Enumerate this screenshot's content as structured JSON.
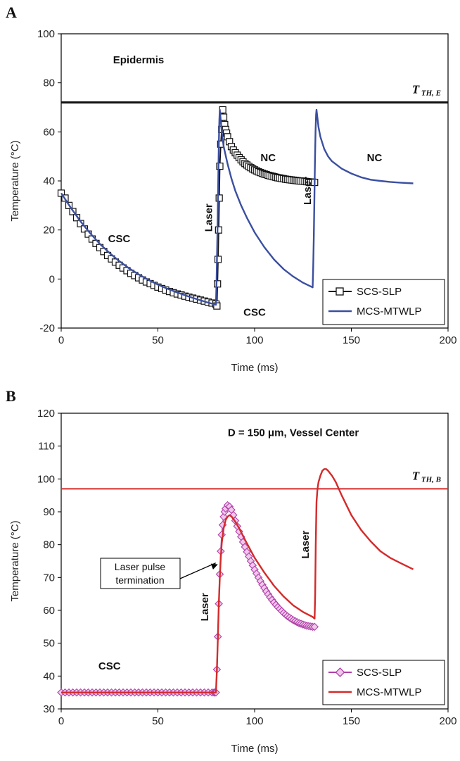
{
  "chart_data": [
    {
      "panel": "A",
      "type": "line",
      "xlabel": "Time (ms)",
      "ylabel": "Temperature (°C)",
      "xlim": [
        0,
        200
      ],
      "ylim": [
        -20,
        100
      ],
      "xticks": [
        0,
        50,
        100,
        150,
        200
      ],
      "yticks": [
        -20,
        0,
        20,
        40,
        60,
        80,
        100
      ],
      "grid": false,
      "legend_position": "bottom-right",
      "threshold": {
        "label": "T",
        "subscript": "TH, E",
        "y": 72
      },
      "annotations": [
        {
          "text": "Epidermis",
          "x": 40,
          "y": 88
        },
        {
          "text": "CSC",
          "x": 30,
          "y": 15
        },
        {
          "text": "CSC",
          "x": 100,
          "y": -15
        },
        {
          "text": "NC",
          "x": 107,
          "y": 48
        },
        {
          "text": "NC",
          "x": 162,
          "y": 48
        },
        {
          "text": "Laser",
          "x": 78,
          "y": 25,
          "rotate": true
        },
        {
          "text": "Laser",
          "x": 129,
          "y": 36,
          "rotate": true
        }
      ],
      "series": [
        {
          "name": "SCS-SLP",
          "color": "#111111",
          "marker": "square",
          "x": [
            0,
            2,
            4,
            6,
            8,
            10,
            12,
            14,
            16,
            18,
            20,
            22,
            24,
            26,
            28,
            30,
            32,
            34,
            36,
            38,
            40,
            42,
            44,
            46,
            48,
            50,
            52,
            54,
            56,
            58,
            60,
            62,
            64,
            66,
            68,
            70,
            72,
            74,
            76,
            78,
            80,
            80.5,
            80.8,
            81.1,
            81.4,
            81.7,
            82,
            82.5,
            83,
            83.5,
            84,
            84.5,
            85,
            85.5,
            86,
            87,
            88,
            89,
            90,
            91,
            92,
            93,
            94,
            95,
            96,
            97,
            98,
            99,
            100,
            101,
            102,
            103,
            104,
            105,
            106,
            107,
            108,
            109,
            110,
            111,
            112,
            113,
            114,
            115,
            116,
            117,
            118,
            119,
            120,
            121,
            122,
            123,
            124,
            125,
            126,
            127,
            128,
            129,
            130,
            131
          ],
          "y": [
            35,
            33,
            30,
            27.5,
            25,
            22.6,
            20.4,
            18.3,
            16.3,
            14.5,
            12.8,
            11.2,
            9.6,
            8.2,
            6.9,
            5.6,
            4.5,
            3.4,
            2.3,
            1.4,
            0.5,
            -0.4,
            -1.2,
            -1.9,
            -2.6,
            -3.3,
            -3.9,
            -4.5,
            -5.1,
            -5.6,
            -6.1,
            -6.5,
            -7,
            -7.4,
            -7.8,
            -8.2,
            -8.6,
            -9,
            -9.4,
            -9.8,
            -10.2,
            -11,
            -2,
            8,
            20,
            33,
            46,
            55,
            61,
            69,
            66,
            63,
            61,
            59.5,
            58,
            56,
            54,
            52.6,
            51.5,
            50.5,
            49.5,
            48.6,
            47.8,
            47.1,
            46.5,
            45.9,
            45.4,
            44.9,
            44.5,
            44.1,
            43.7,
            43.4,
            43.1,
            42.8,
            42.6,
            42.3,
            42.1,
            41.9,
            41.7,
            41.5,
            41.3,
            41.2,
            41,
            40.9,
            40.7,
            40.6,
            40.5,
            40.4,
            40.3,
            40.2,
            40.1,
            40,
            39.95,
            39.9,
            39.8,
            39.7,
            39.6,
            39.55,
            39.5,
            39.4
          ],
          "values": [
            35,
            33,
            30,
            27.5,
            25,
            22.6,
            20.4,
            18.3,
            16.3,
            14.5,
            12.8,
            11.2,
            9.6,
            8.2,
            6.9,
            5.6,
            4.5,
            3.4,
            2.3,
            1.4,
            0.5,
            -0.4,
            -1.2,
            -1.9,
            -2.6,
            -3.3,
            -3.9,
            -4.5,
            -5.1,
            -5.6,
            -6.1,
            -6.5,
            -7,
            -7.4,
            -7.8,
            -8.2,
            -8.6,
            -9,
            -9.4,
            -9.8,
            -10.2,
            -11,
            -2,
            8,
            20,
            33,
            46,
            55,
            61,
            69,
            66,
            63,
            61,
            59.5,
            58,
            56,
            54,
            52.6,
            51.5,
            50.5,
            49.5,
            48.6,
            47.8,
            47.1,
            46.5,
            45.9,
            45.4,
            44.9,
            44.5,
            44.1,
            43.7,
            43.4,
            43.1,
            42.8,
            42.6,
            42.3,
            42.1,
            41.9,
            41.7,
            41.5,
            41.3,
            41.2,
            41,
            40.9,
            40.7,
            40.6,
            40.5,
            40.4,
            40.3,
            40.2,
            40.1,
            40,
            39.95,
            39.9,
            39.8,
            39.7,
            39.6,
            39.55,
            39.5,
            39.4
          ]
        },
        {
          "name": "MCS-MTWLP",
          "color": "#3b4fa0",
          "marker": "none",
          "x": [
            0,
            5,
            10,
            15,
            20,
            25,
            30,
            35,
            40,
            45,
            50,
            55,
            60,
            65,
            70,
            75,
            80,
            80.3,
            80.6,
            80.9,
            81.2,
            81.5,
            81.8,
            82,
            83,
            84,
            86,
            88,
            90,
            93,
            96,
            100,
            105,
            110,
            115,
            120,
            125,
            130,
            130.3,
            130.6,
            130.9,
            131.2,
            131.5,
            131.8,
            132,
            133,
            134,
            136,
            138,
            140,
            145,
            150,
            155,
            160,
            165,
            170,
            175,
            182
          ],
          "y": [
            35,
            29,
            23.5,
            18.6,
            14.3,
            10.6,
            7.3,
            4.4,
            1.9,
            -0.3,
            -2.3,
            -4,
            -5.5,
            -6.9,
            -8.2,
            -9.4,
            -10.5,
            -2,
            10,
            25,
            40,
            55,
            65,
            69,
            60,
            54,
            47,
            41,
            36,
            30,
            25,
            19,
            13,
            8,
            4,
            1,
            -1.5,
            -3.4,
            5,
            18,
            33,
            48,
            60,
            67,
            69,
            62,
            58,
            53,
            50,
            48,
            45,
            43,
            41.5,
            40.5,
            40,
            39.6,
            39.3,
            39
          ],
          "values": [
            35,
            29,
            23.5,
            18.6,
            14.3,
            10.6,
            7.3,
            4.4,
            1.9,
            -0.3,
            -2.3,
            -4,
            -5.5,
            -6.9,
            -8.2,
            -9.4,
            -10.5,
            -2,
            10,
            25,
            40,
            55,
            65,
            69,
            60,
            54,
            47,
            41,
            36,
            30,
            25,
            19,
            13,
            8,
            4,
            1,
            -1.5,
            -3.4,
            5,
            18,
            33,
            48,
            60,
            67,
            69,
            62,
            58,
            53,
            50,
            48,
            45,
            43,
            41.5,
            40.5,
            40,
            39.6,
            39.3,
            39
          ]
        }
      ]
    },
    {
      "panel": "B",
      "type": "line",
      "xlabel": "Time (ms)",
      "ylabel": "Temperature (°C)",
      "xlim": [
        0,
        200
      ],
      "ylim": [
        30,
        120
      ],
      "xticks": [
        0,
        50,
        100,
        150,
        200
      ],
      "yticks": [
        30,
        40,
        50,
        60,
        70,
        80,
        90,
        100,
        110,
        120
      ],
      "grid": false,
      "legend_position": "bottom-right",
      "threshold": {
        "label": "T",
        "subscript": "TH, B",
        "y": 97
      },
      "annotations": [
        {
          "text": "D = 150 μm, Vessel Center",
          "x": 120,
          "y": 113
        },
        {
          "text": "CSC",
          "x": 25,
          "y": 42
        },
        {
          "text": "Laser",
          "x": 76,
          "y": 61,
          "rotate": true
        },
        {
          "text": "Laser",
          "x": 128,
          "y": 80,
          "rotate": true
        }
      ],
      "callout": {
        "text": [
          "Laser pulse",
          "termination"
        ],
        "arrow_to": [
          81,
          74
        ]
      },
      "series": [
        {
          "name": "SCS-SLP",
          "color": "#b040a8",
          "marker": "diamond",
          "x": [
            0,
            2,
            4,
            6,
            8,
            10,
            12,
            14,
            16,
            18,
            20,
            22,
            24,
            26,
            28,
            30,
            32,
            34,
            36,
            38,
            40,
            42,
            44,
            46,
            48,
            50,
            52,
            54,
            56,
            58,
            60,
            62,
            64,
            66,
            68,
            70,
            72,
            74,
            76,
            78,
            79,
            79.5,
            80,
            80.5,
            81,
            81.5,
            82,
            82.5,
            83,
            83.5,
            84,
            84.5,
            85,
            86,
            87,
            88,
            89,
            90,
            91,
            92,
            93,
            94,
            95,
            96,
            97,
            98,
            99,
            100,
            101,
            102,
            103,
            104,
            105,
            106,
            107,
            108,
            109,
            110,
            111,
            112,
            113,
            114,
            115,
            116,
            117,
            118,
            119,
            120,
            121,
            122,
            123,
            124,
            125,
            126,
            127,
            128,
            129,
            130,
            131
          ],
          "y": [
            35,
            35,
            35,
            35,
            35,
            35,
            35,
            35,
            35,
            35,
            35,
            35,
            35,
            35,
            35,
            35,
            35,
            35,
            35,
            35,
            35,
            35,
            35,
            35,
            35,
            35,
            35,
            35,
            35,
            35,
            35,
            35,
            35,
            35,
            35,
            35,
            35,
            35,
            35,
            35,
            35,
            35,
            35,
            42,
            52,
            62,
            71,
            78,
            83,
            86,
            88.5,
            90,
            91,
            92,
            91.6,
            90.6,
            89,
            87.3,
            85.6,
            84,
            82.4,
            80.8,
            79.3,
            77.8,
            76.4,
            75,
            73.7,
            72.4,
            71.2,
            70,
            68.9,
            67.8,
            66.8,
            65.8,
            64.9,
            64,
            63.2,
            62.4,
            61.7,
            61,
            60.4,
            59.8,
            59.2,
            58.7,
            58.2,
            57.8,
            57.4,
            57,
            56.7,
            56.4,
            56.1,
            55.9,
            55.7,
            55.5,
            55.3,
            55.2,
            55.1,
            55,
            55
          ],
          "values": [
            35,
            35,
            35,
            35,
            35,
            35,
            35,
            35,
            35,
            35,
            35,
            35,
            35,
            35,
            35,
            35,
            35,
            35,
            35,
            35,
            35,
            35,
            35,
            35,
            35,
            35,
            35,
            35,
            35,
            35,
            35,
            35,
            35,
            35,
            35,
            35,
            35,
            35,
            35,
            35,
            35,
            35,
            35,
            42,
            52,
            62,
            71,
            78,
            83,
            86,
            88.5,
            90,
            91,
            92,
            91.6,
            90.6,
            89,
            87.3,
            85.6,
            84,
            82.4,
            80.8,
            79.3,
            77.8,
            76.4,
            75,
            73.7,
            72.4,
            71.2,
            70,
            68.9,
            67.8,
            66.8,
            65.8,
            64.9,
            64,
            63.2,
            62.4,
            61.7,
            61,
            60.4,
            59.8,
            59.2,
            58.7,
            58.2,
            57.8,
            57.4,
            57,
            56.7,
            56.4,
            56.1,
            55.9,
            55.7,
            55.5,
            55.3,
            55.2,
            55.1,
            55,
            55
          ]
        },
        {
          "name": "MCS-MTWLP",
          "color": "#d42a2a",
          "marker": "none",
          "x": [
            0,
            20,
            40,
            60,
            79,
            80,
            80.5,
            81,
            81.5,
            82,
            82.5,
            83,
            84,
            85,
            86,
            87,
            88,
            90,
            92,
            95,
            100,
            105,
            110,
            115,
            120,
            125,
            130,
            131,
            131.3,
            131.6,
            132,
            132.5,
            133,
            134,
            135,
            136,
            137,
            138,
            140,
            142,
            145,
            150,
            155,
            160,
            165,
            170,
            175,
            182
          ],
          "y": [
            35,
            35,
            35,
            35,
            35,
            35,
            42,
            52,
            62,
            70,
            76,
            80.5,
            85,
            87.5,
            88.5,
            89,
            88.6,
            87,
            85,
            81.5,
            76,
            71.5,
            67.5,
            64.2,
            61.5,
            59.5,
            58,
            57.5,
            65,
            80,
            93,
            97,
            99,
            101,
            102.5,
            103,
            103,
            102.5,
            101,
            99,
            95,
            89,
            84.5,
            81,
            78,
            76,
            74.5,
            72.5
          ],
          "values": [
            35,
            35,
            35,
            35,
            35,
            35,
            42,
            52,
            62,
            70,
            76,
            80.5,
            85,
            87.5,
            88.5,
            89,
            88.6,
            87,
            85,
            81.5,
            76,
            71.5,
            67.5,
            64.2,
            61.5,
            59.5,
            58,
            57.5,
            65,
            80,
            93,
            97,
            99,
            101,
            102.5,
            103,
            103,
            102.5,
            101,
            99,
            95,
            89,
            84.5,
            81,
            78,
            76,
            74.5,
            72.5
          ]
        }
      ]
    }
  ]
}
